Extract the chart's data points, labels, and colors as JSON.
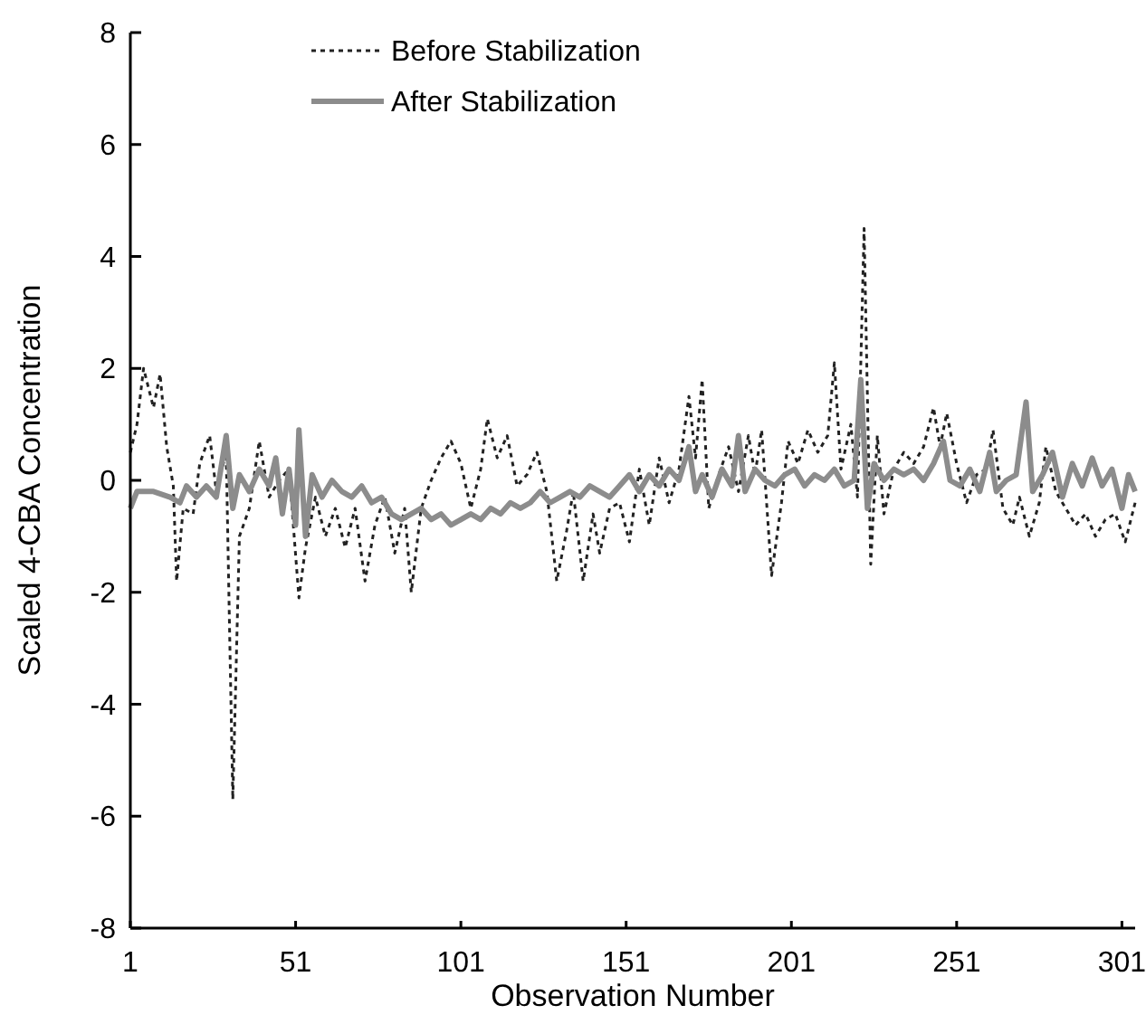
{
  "chart_data": {
    "type": "line",
    "xlabel": "Observation Number",
    "ylabel": "Scaled 4-CBA Concentration",
    "xlim": [
      1,
      305
    ],
    "xticks": [
      1,
      51,
      101,
      151,
      201,
      251,
      301
    ],
    "ylim": [
      -8,
      8
    ],
    "yticks": [
      -8,
      -6,
      -4,
      -2,
      0,
      2,
      4,
      6,
      8
    ],
    "grid": false,
    "legend": "top left",
    "marker": "none",
    "series": [
      {
        "name": "Before Stabilization",
        "color": "#222222",
        "line_style": "dotted",
        "x": [
          1,
          3,
          5,
          8,
          10,
          12,
          14,
          15,
          17,
          20,
          22,
          25,
          27,
          30,
          32,
          34,
          37,
          40,
          43,
          46,
          49,
          52,
          54,
          57,
          60,
          63,
          66,
          69,
          72,
          75,
          78,
          81,
          84,
          86,
          89,
          92,
          95,
          98,
          101,
          104,
          107,
          109,
          112,
          115,
          118,
          121,
          124,
          127,
          130,
          133,
          135,
          138,
          141,
          143,
          146,
          149,
          152,
          155,
          158,
          161,
          164,
          167,
          170,
          172,
          174,
          176,
          179,
          182,
          185,
          188,
          190,
          192,
          195,
          198,
          200,
          203,
          206,
          209,
          212,
          214,
          216,
          219,
          221,
          223,
          225,
          227,
          229,
          232,
          235,
          238,
          241,
          244,
          246,
          248,
          251,
          254,
          257,
          260,
          262,
          265,
          268,
          270,
          273,
          276,
          278,
          281,
          284,
          287,
          290,
          293,
          296,
          299,
          302,
          305
        ],
        "values": [
          0.5,
          1,
          2,
          1.3,
          1.9,
          0.6,
          -0.1,
          -1.8,
          -0.5,
          -0.6,
          0.3,
          0.8,
          -0.2,
          0.5,
          -5.7,
          -1,
          -0.5,
          0.7,
          -0.3,
          0,
          0.2,
          -2.1,
          -1.2,
          -0.3,
          -1,
          -0.5,
          -1.2,
          -0.5,
          -1.8,
          -0.8,
          -0.3,
          -1.3,
          -0.5,
          -2,
          -0.5,
          0,
          0.4,
          0.7,
          0.3,
          -0.5,
          0.2,
          1.1,
          0.4,
          0.8,
          -0.1,
          0.1,
          0.5,
          -0.2,
          -1.8,
          -0.9,
          -0.2,
          -1.8,
          -0.6,
          -1.3,
          -0.5,
          -0.4,
          -1.1,
          0.2,
          -0.8,
          0.4,
          -0.4,
          0.2,
          1.5,
          0.4,
          1.8,
          -0.5,
          0.1,
          0.6,
          -0.2,
          0.8,
          0.1,
          0.9,
          -1.7,
          -0.4,
          0.7,
          0.3,
          0.9,
          0.5,
          0.8,
          2.1,
          0.2,
          1,
          -0.3,
          4.5,
          -1.5,
          0.8,
          -0.6,
          0.2,
          0.5,
          0.3,
          0.6,
          1.3,
          0.6,
          1.2,
          0.3,
          -0.4,
          0.1,
          0.2,
          0.9,
          -0.5,
          -0.8,
          -0.3,
          -1,
          -0.4,
          0.6,
          -0.2,
          -0.5,
          -0.8,
          -0.6,
          -1,
          -0.7,
          -0.6,
          -1.1,
          -0.4
        ]
      },
      {
        "name": "After Stabilization",
        "color": "#8c8c8c",
        "line_style": "solid",
        "x": [
          1,
          3,
          8,
          13,
          16,
          18,
          21,
          24,
          27,
          30,
          32,
          34,
          37,
          40,
          43,
          45,
          47,
          49,
          51,
          52,
          54,
          56,
          59,
          62,
          65,
          68,
          71,
          74,
          77,
          80,
          83,
          86,
          89,
          92,
          95,
          98,
          101,
          104,
          107,
          110,
          113,
          116,
          119,
          122,
          125,
          128,
          131,
          134,
          137,
          140,
          143,
          146,
          149,
          152,
          155,
          158,
          161,
          164,
          167,
          170,
          172,
          174,
          177,
          180,
          183,
          185,
          187,
          190,
          193,
          196,
          199,
          202,
          205,
          208,
          211,
          214,
          217,
          220,
          222,
          224,
          226,
          229,
          232,
          235,
          238,
          241,
          244,
          247,
          249,
          252,
          255,
          258,
          261,
          263,
          266,
          269,
          272,
          274,
          277,
          280,
          283,
          286,
          289,
          292,
          295,
          298,
          301,
          303,
          305
        ],
        "values": [
          -0.5,
          -0.2,
          -0.2,
          -0.3,
          -0.4,
          -0.1,
          -0.3,
          -0.1,
          -0.3,
          0.8,
          -0.5,
          0.1,
          -0.2,
          0.2,
          -0.1,
          0.4,
          -0.6,
          0.2,
          -0.8,
          0.9,
          -1,
          0.1,
          -0.3,
          0,
          -0.2,
          -0.3,
          -0.1,
          -0.4,
          -0.3,
          -0.6,
          -0.7,
          -0.6,
          -0.5,
          -0.7,
          -0.6,
          -0.8,
          -0.7,
          -0.6,
          -0.7,
          -0.5,
          -0.6,
          -0.4,
          -0.5,
          -0.4,
          -0.2,
          -0.4,
          -0.3,
          -0.2,
          -0.3,
          -0.1,
          -0.2,
          -0.3,
          -0.1,
          0.1,
          -0.2,
          0.1,
          -0.1,
          0.2,
          0,
          0.6,
          -0.2,
          0.1,
          -0.3,
          0.2,
          -0.1,
          0.8,
          -0.2,
          0.2,
          0,
          -0.1,
          0.1,
          0.2,
          -0.1,
          0.1,
          0,
          0.2,
          -0.1,
          0,
          1.8,
          -0.5,
          0.3,
          0,
          0.2,
          0.1,
          0.2,
          0,
          0.3,
          0.7,
          0,
          -0.1,
          0.2,
          -0.2,
          0.5,
          -0.2,
          0,
          0.1,
          1.4,
          -0.2,
          0.1,
          0.5,
          -0.3,
          0.3,
          -0.1,
          0.4,
          -0.1,
          0.2,
          -0.5,
          0.1,
          -0.2
        ]
      }
    ]
  }
}
